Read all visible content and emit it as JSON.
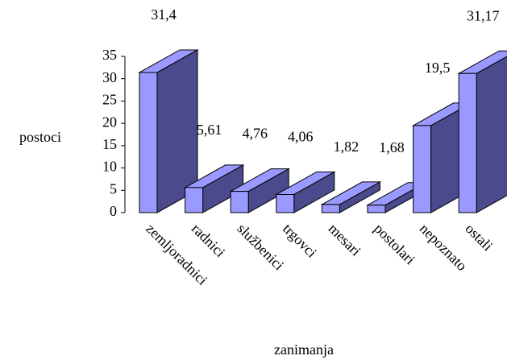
{
  "chart_data": {
    "type": "bar3d",
    "categories": [
      "zemljoradnici",
      "radnici",
      "službenici",
      "trgovci",
      "mesari",
      "postolari",
      "nepoznato",
      "ostali"
    ],
    "values": [
      31.4,
      5.61,
      4.76,
      4.06,
      1.82,
      1.68,
      19.5,
      31.17
    ],
    "value_labels": [
      "31,4",
      "5,61",
      "4,76",
      "4,06",
      "1,82",
      "1,68",
      "19,5",
      "31,17"
    ],
    "ylabel": "postoci",
    "xlabel": "zanimanja",
    "ylim": [
      0,
      35
    ],
    "yticks": [
      0,
      5,
      10,
      15,
      20,
      25,
      30,
      35
    ],
    "color": "#9999ff",
    "side_color": "#4a4a8c"
  }
}
